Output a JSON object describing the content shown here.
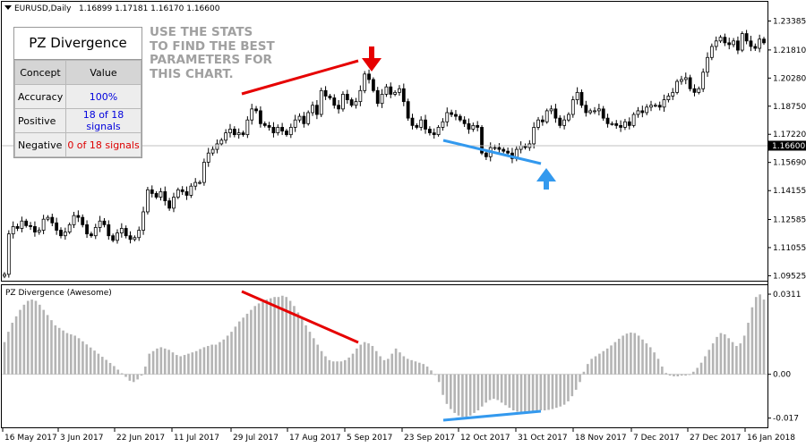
{
  "symbol_line": {
    "symbol": "EURUSD,Daily",
    "ohlc": "1.16899 1.17181 1.16170 1.16600"
  },
  "price_axis": {
    "labels": [
      "1.23385",
      "1.21810",
      "1.20280",
      "1.18750",
      "1.17220",
      "1.15690",
      "1.14155",
      "1.12585",
      "1.11055",
      "1.09525"
    ],
    "current_price": "1.16600"
  },
  "indicator": {
    "name": "PZ Divergence (Awesome)",
    "axis_labels": [
      "0.0311",
      "0.00",
      "-0.017"
    ]
  },
  "date_axis": [
    "16 May 2017",
    "3 Jun 2017",
    "22 Jun 2017",
    "11 Jul 2017",
    "29 Jul 2017",
    "17 Aug 2017",
    "5 Sep 2017",
    "23 Sep 2017",
    "12 Oct 2017",
    "31 Oct 2017",
    "18 Nov 2017",
    "7 Dec 2017",
    "27 Dec 2017",
    "16 Jan 2018"
  ],
  "stats_panel": {
    "title": "PZ Divergence",
    "header": {
      "concept": "Concept",
      "value": "Value"
    },
    "rows": [
      {
        "concept": "Accuracy",
        "value": "100%",
        "color": "#0000dd"
      },
      {
        "concept": "Positive",
        "value": "18 of 18 signals",
        "color": "#0000dd"
      },
      {
        "concept": "Negative",
        "value": "0 of 18 signals",
        "color": "#dd0000"
      }
    ]
  },
  "promo_text": [
    "USE THE STATS",
    "TO FIND THE BEST",
    "PARAMETERS FOR",
    "THIS CHART."
  ],
  "colors": {
    "bull": "#ffffff",
    "bear": "#000000",
    "ao_bars": "#b4b4b4",
    "bearish_divergence": "#e60000",
    "bullish_divergence": "#3399ee",
    "promo": "#a0a0a0"
  },
  "signals": {
    "sell_arrow": "down-arrow-icon",
    "buy_arrow": "up-arrow-icon"
  },
  "chart_data": [
    {
      "type": "candlestick",
      "symbol": "EURUSD",
      "timeframe": "Daily",
      "y_range": [
        1.0935,
        1.2375
      ],
      "close": [
        1.096,
        1.118,
        1.122,
        1.121,
        1.125,
        1.1225,
        1.122,
        1.119,
        1.12,
        1.126,
        1.127,
        1.124,
        1.12,
        1.117,
        1.119,
        1.123,
        1.128,
        1.127,
        1.123,
        1.118,
        1.117,
        1.1215,
        1.125,
        1.123,
        1.117,
        1.1145,
        1.1185,
        1.121,
        1.117,
        1.115,
        1.116,
        1.12,
        1.13,
        1.142,
        1.14,
        1.138,
        1.141,
        1.136,
        1.132,
        1.138,
        1.142,
        1.141,
        1.139,
        1.144,
        1.146,
        1.146,
        1.157,
        1.162,
        1.164,
        1.167,
        1.169,
        1.173,
        1.175,
        1.172,
        1.173,
        1.172,
        1.18,
        1.186,
        1.185,
        1.178,
        1.177,
        1.176,
        1.173,
        1.176,
        1.174,
        1.172,
        1.176,
        1.18,
        1.182,
        1.178,
        1.184,
        1.188,
        1.183,
        1.196,
        1.193,
        1.192,
        1.188,
        1.186,
        1.194,
        1.191,
        1.188,
        1.19,
        1.196,
        1.205,
        1.202,
        1.196,
        1.189,
        1.194,
        1.198,
        1.194,
        1.195,
        1.197,
        1.19,
        1.181,
        1.177,
        1.176,
        1.18,
        1.175,
        1.173,
        1.172,
        1.176,
        1.179,
        1.184,
        1.183,
        1.182,
        1.18,
        1.178,
        1.175,
        1.177,
        1.176,
        1.162,
        1.16,
        1.165,
        1.165,
        1.164,
        1.163,
        1.162,
        1.159,
        1.164,
        1.166,
        1.165,
        1.167,
        1.176,
        1.18,
        1.179,
        1.185,
        1.186,
        1.181,
        1.177,
        1.18,
        1.183,
        1.191,
        1.195,
        1.188,
        1.184,
        1.185,
        1.185,
        1.186,
        1.181,
        1.178,
        1.178,
        1.177,
        1.176,
        1.179,
        1.177,
        1.183,
        1.185,
        1.184,
        1.187,
        1.188,
        1.188,
        1.187,
        1.191,
        1.193,
        1.195,
        1.201,
        1.202,
        1.203,
        1.197,
        1.195,
        1.197,
        1.206,
        1.214,
        1.22,
        1.223,
        1.225,
        1.222,
        1.221,
        1.223,
        1.218,
        1.227,
        1.223,
        1.22,
        1.219,
        1.224,
        1.222
      ],
      "current_price": 1.166
    },
    {
      "type": "bar",
      "title": "PZ Divergence (Awesome)",
      "y_range": [
        -0.0185,
        0.0325
      ],
      "values": [
        0.0125,
        0.0165,
        0.02,
        0.0225,
        0.025,
        0.027,
        0.0285,
        0.029,
        0.0285,
        0.027,
        0.025,
        0.023,
        0.021,
        0.019,
        0.018,
        0.017,
        0.016,
        0.0155,
        0.015,
        0.014,
        0.0128,
        0.0116,
        0.0104,
        0.0092,
        0.008,
        0.0068,
        0.0056,
        0.0044,
        0.0032,
        0.0018,
        0.0004,
        -0.001,
        -0.0025,
        -0.003,
        -0.002,
        -0.0005,
        0.003,
        0.008,
        0.009,
        0.01,
        0.0105,
        0.01,
        0.0095,
        0.0085,
        0.0075,
        0.007,
        0.0075,
        0.008,
        0.0085,
        0.009,
        0.0098,
        0.0105,
        0.011,
        0.0115,
        0.0115,
        0.0125,
        0.0135,
        0.015,
        0.0165,
        0.0185,
        0.0205,
        0.022,
        0.0235,
        0.025,
        0.0265,
        0.0275,
        0.028,
        0.029,
        0.0295,
        0.03,
        0.03,
        0.0305,
        0.03,
        0.0285,
        0.0265,
        0.024,
        0.0215,
        0.019,
        0.0165,
        0.014,
        0.0115,
        0.009,
        0.007,
        0.0055,
        0.005,
        0.005,
        0.005,
        0.0055,
        0.0065,
        0.008,
        0.01,
        0.0115,
        0.0125,
        0.012,
        0.011,
        0.009,
        0.007,
        0.0055,
        0.006,
        0.008,
        0.01,
        0.0085,
        0.007,
        0.006,
        0.0055,
        0.005,
        0.0045,
        0.004,
        0.003,
        0.0015,
        0.0,
        -0.003,
        -0.008,
        -0.0115,
        -0.0135,
        -0.015,
        -0.016,
        -0.0165,
        -0.0165,
        -0.016,
        -0.015,
        -0.014,
        -0.0125,
        -0.011,
        -0.01,
        -0.0095,
        -0.01,
        -0.011,
        -0.012,
        -0.013,
        -0.014,
        -0.0145,
        -0.0148,
        -0.015,
        -0.015,
        -0.0148,
        -0.0145,
        -0.014,
        -0.014,
        -0.0138,
        -0.0135,
        -0.013,
        -0.0125,
        -0.0118,
        -0.0105,
        -0.0085,
        -0.006,
        -0.003,
        0.001,
        0.004,
        0.006,
        0.007,
        0.008,
        0.009,
        0.01,
        0.0112,
        0.0125,
        0.0138,
        0.015,
        0.0158,
        0.0162,
        0.016,
        0.015,
        0.0135,
        0.012,
        0.0105,
        0.0085,
        0.006,
        0.003,
        0.0005,
        -0.0005,
        -0.0008,
        -0.0008,
        -0.0005,
        -0.0005,
        -0.0002,
        0.001,
        0.0025,
        0.0045,
        0.007,
        0.0095,
        0.012,
        0.0145,
        0.016,
        0.0155,
        0.014,
        0.0125,
        0.011,
        0.012,
        0.015,
        0.02,
        0.026,
        0.03,
        0.031,
        0.029
      ]
    }
  ]
}
